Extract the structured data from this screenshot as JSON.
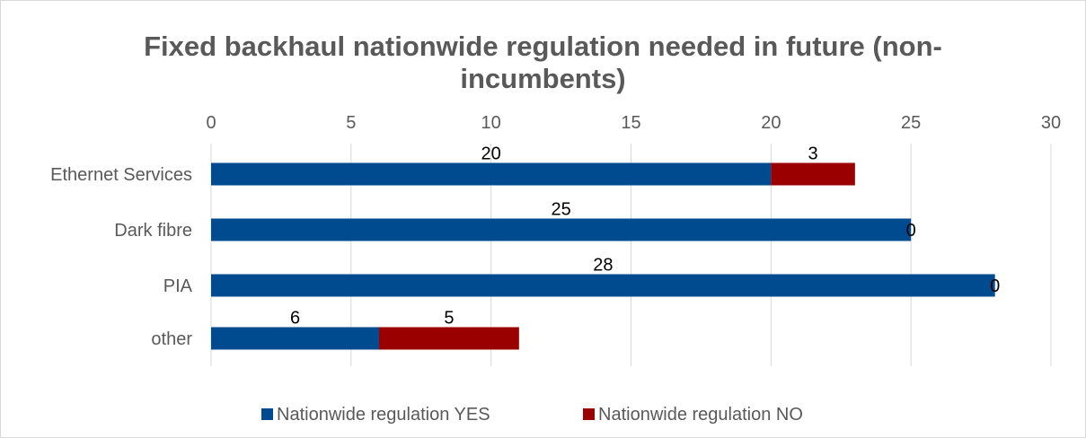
{
  "chart_data": {
    "type": "bar",
    "orientation": "horizontal",
    "stacked": true,
    "title_line1": "Fixed backhaul nationwide regulation needed in future (non-",
    "title_line2": "incumbents)",
    "categories": [
      "Ethernet Services",
      "Dark fibre",
      "PIA",
      "other"
    ],
    "series": [
      {
        "name": "Nationwide regulation YES",
        "color": "#004a8f",
        "values": [
          20,
          25,
          28,
          6
        ]
      },
      {
        "name": "Nationwide regulation NO",
        "color": "#9b0000",
        "values": [
          3,
          0,
          0,
          5
        ]
      }
    ],
    "xlim": [
      0,
      30
    ],
    "xticks": [
      0,
      5,
      10,
      15,
      20,
      25,
      30
    ],
    "x_axis_position": "top",
    "grid": true,
    "legend_position": "bottom"
  }
}
